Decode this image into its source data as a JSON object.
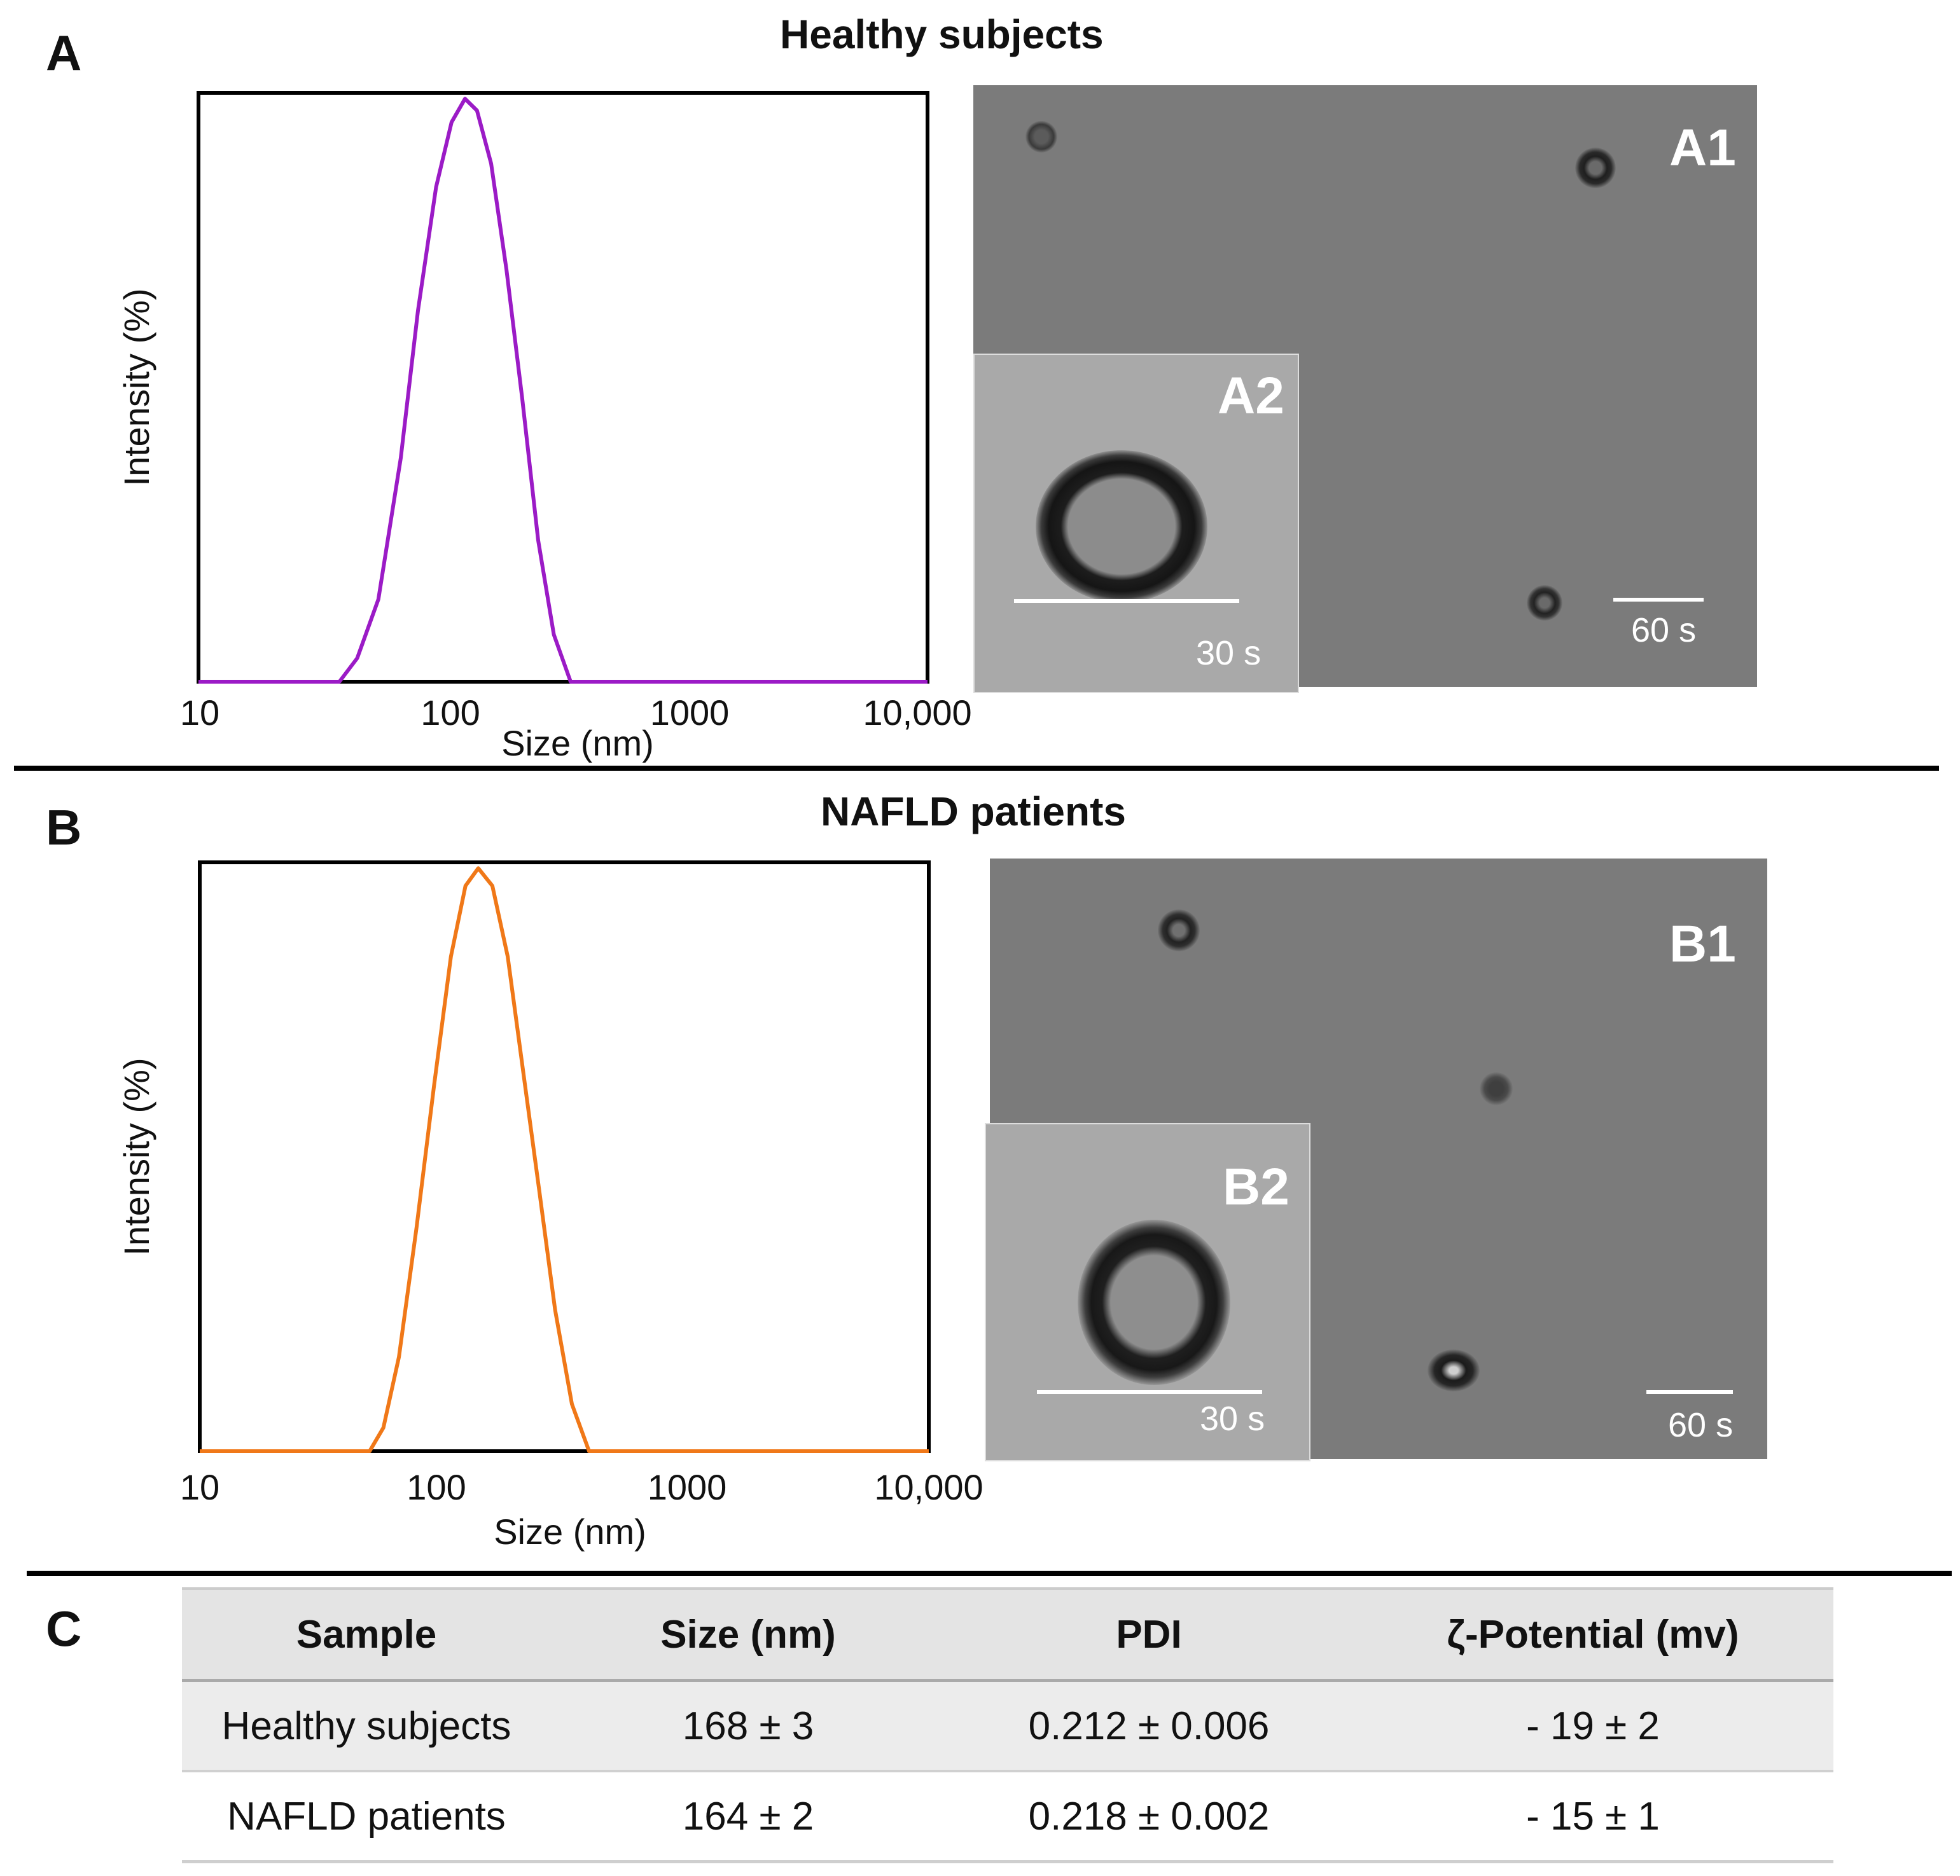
{
  "panels": {
    "A": {
      "letter": "A",
      "title": "Healthy subjects",
      "tem_main_label": "A1",
      "tem_inset_label": "A2",
      "scale_main": "60 s",
      "scale_inset": "30 s"
    },
    "B": {
      "letter": "B",
      "title": "NAFLD patients",
      "tem_main_label": "B1",
      "tem_inset_label": "B2",
      "scale_main": "60 s",
      "scale_inset": "30 s"
    },
    "C": {
      "letter": "C"
    }
  },
  "chart_data": [
    {
      "type": "line",
      "panel": "A",
      "xscale": "log",
      "xlim": [
        10,
        10000
      ],
      "ylim": [
        0,
        100
      ],
      "xticks": [
        10,
        100,
        1000,
        10000
      ],
      "xtick_labels": [
        "10",
        "100",
        "1000",
        "10,000"
      ],
      "xlabel": "Size (nm)",
      "ylabel": "Intensity (%)",
      "series": [
        {
          "name": "Healthy subjects",
          "color": "#9b1bc6",
          "x": [
            10,
            38,
            45,
            55,
            68,
            80,
            95,
            110,
            125,
            140,
            160,
            185,
            215,
            250,
            290,
            340,
            400,
            10000
          ],
          "y": [
            0,
            0,
            4,
            14,
            38,
            63,
            84,
            95,
            99,
            97,
            88,
            70,
            48,
            24,
            8,
            0,
            0,
            0
          ]
        }
      ]
    },
    {
      "type": "line",
      "panel": "B",
      "xscale": "log",
      "xlim": [
        10,
        10000
      ],
      "ylim": [
        0,
        100
      ],
      "xticks": [
        10,
        100,
        1000,
        10000
      ],
      "xtick_labels": [
        "10",
        "100",
        "1000",
        "10,000"
      ],
      "xlabel": "Size (nm)",
      "ylabel": "Intensity (%)",
      "series": [
        {
          "name": "NAFLD patients",
          "color": "#f07818",
          "x": [
            10,
            50,
            57,
            66,
            78,
            92,
            108,
            124,
            140,
            160,
            185,
            215,
            250,
            290,
            340,
            400,
            470,
            10000
          ],
          "y": [
            0,
            0,
            4,
            16,
            38,
            62,
            84,
            96,
            99,
            96,
            84,
            64,
            44,
            24,
            8,
            0,
            0,
            0
          ]
        }
      ]
    }
  ],
  "table": {
    "headers": [
      "Sample",
      "Size (nm)",
      "PDI",
      "ζ-Potential (mv)"
    ],
    "rows": [
      [
        "Healthy subjects",
        "168 ± 3",
        "0.212 ± 0.006",
        "- 19 ± 2"
      ],
      [
        "NAFLD patients",
        "164 ± 2",
        "0.218 ± 0.002",
        "- 15 ± 1"
      ]
    ]
  }
}
